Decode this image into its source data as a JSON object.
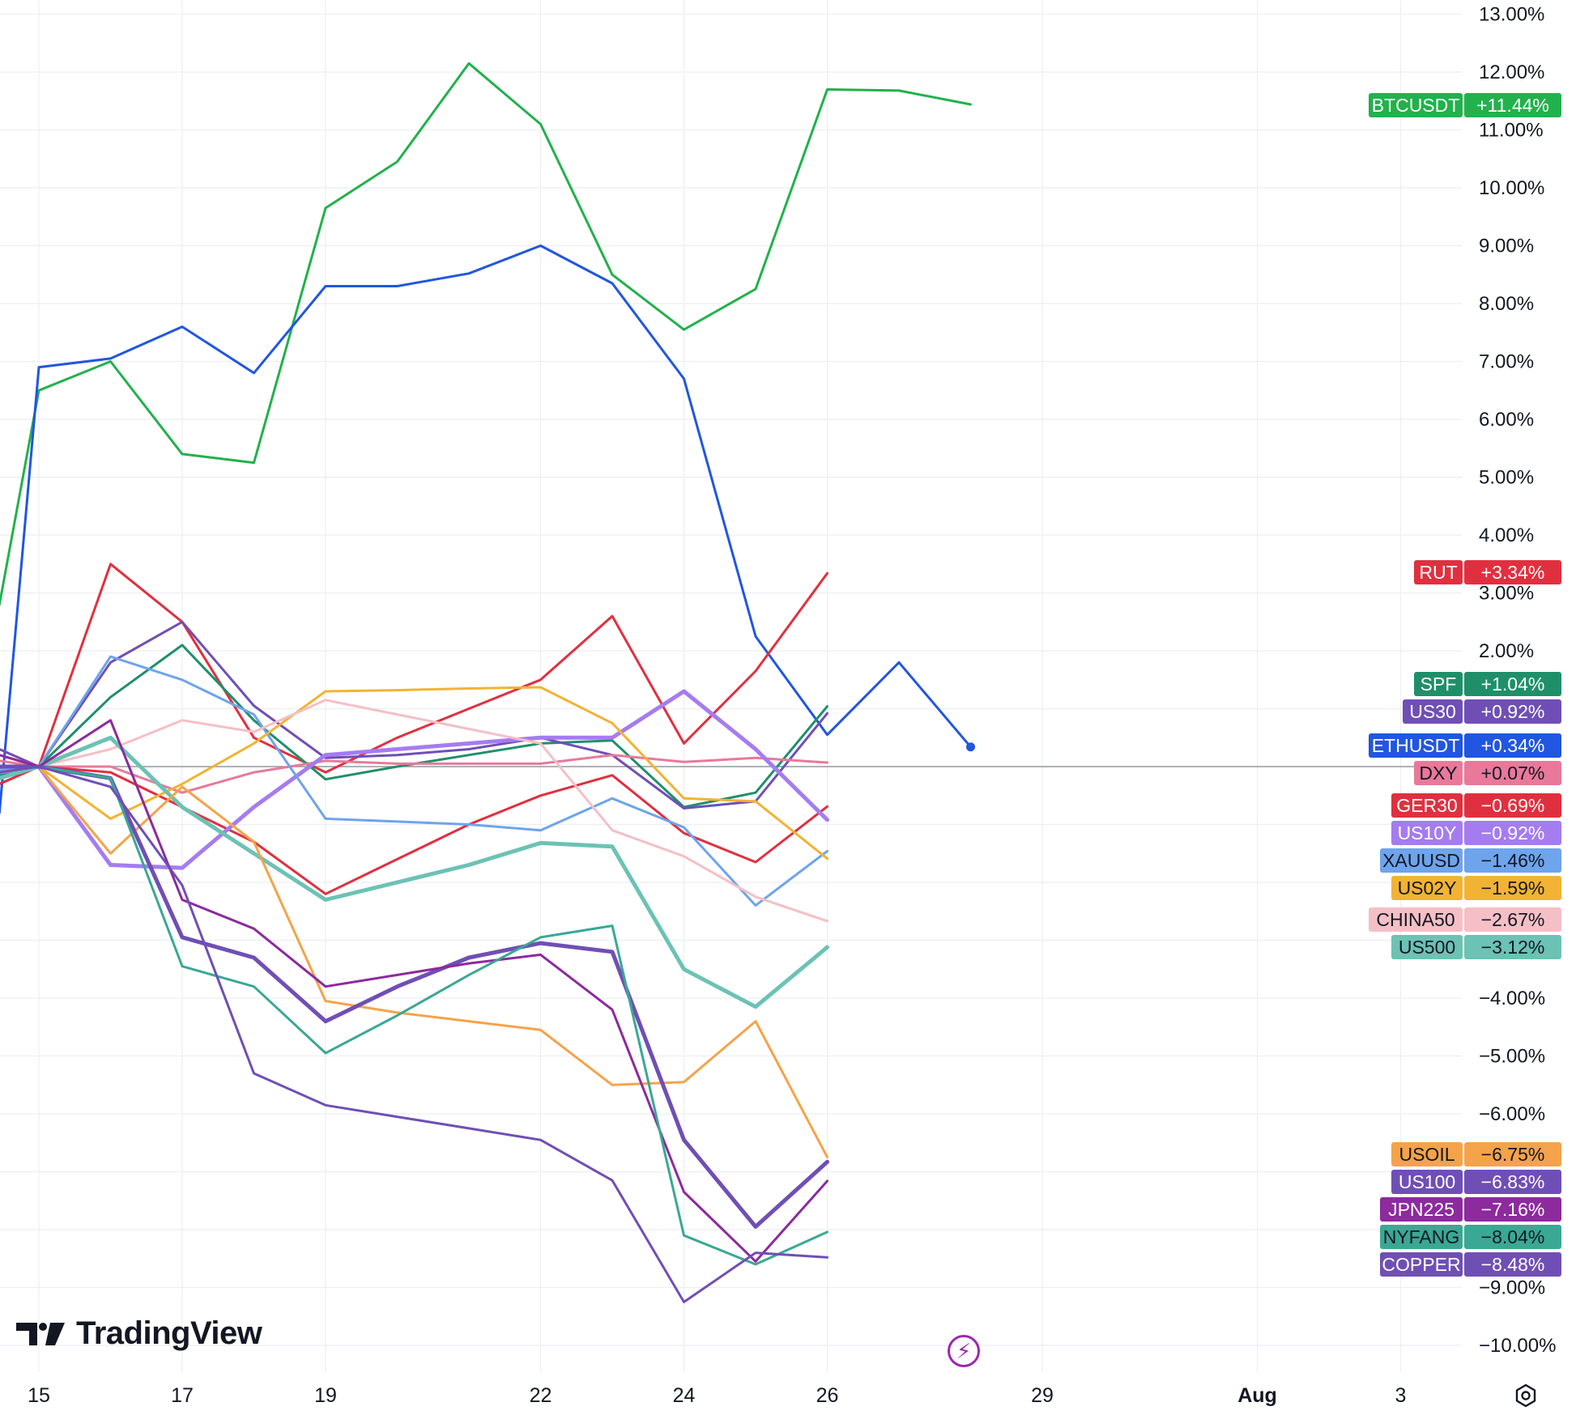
{
  "brand": {
    "name": "TradingView",
    "icon": "tradingview-logo"
  },
  "chart_data": {
    "type": "line",
    "y_unit": "%",
    "ylim": [
      -10.5,
      13.2
    ],
    "y_ticks": [
      "13.00%",
      "12.00%",
      "11.00%",
      "10.00%",
      "9.00%",
      "8.00%",
      "7.00%",
      "6.00%",
      "5.00%",
      "4.00%",
      "3.00%",
      "2.00%",
      "−4.00%",
      "−5.00%",
      "−6.00%",
      "−9.00%",
      "−10.00%"
    ],
    "y_tick_values": [
      13,
      12,
      11,
      10,
      9,
      8,
      7,
      6,
      5,
      4,
      3,
      2,
      -4,
      -5,
      -6,
      -9,
      -10
    ],
    "x_ticks": [
      {
        "label": "15",
        "x": 0
      },
      {
        "label": "17",
        "x": 2
      },
      {
        "label": "19",
        "x": 4
      },
      {
        "label": "22",
        "x": 7
      },
      {
        "label": "24",
        "x": 9
      },
      {
        "label": "26",
        "x": 11
      },
      {
        "label": "29",
        "x": 14
      },
      {
        "label": "Aug",
        "x": 17,
        "bold": true
      },
      {
        "label": "3",
        "x": 19
      }
    ],
    "xlim": [
      -0.55,
      19.0
    ],
    "grid": true,
    "zero_line": true,
    "series": [
      {
        "name": "BTCUSDT",
        "label": "+11.44%",
        "color": "#22b14c",
        "last_dot": false,
        "points": [
          [
            -0.55,
            2.8
          ],
          [
            0,
            6.5
          ],
          [
            1,
            7.0
          ],
          [
            2,
            5.4
          ],
          [
            3,
            5.25
          ],
          [
            4,
            9.65
          ],
          [
            5,
            10.45
          ],
          [
            6,
            12.15
          ],
          [
            7,
            11.1
          ],
          [
            8,
            8.5
          ],
          [
            9,
            7.55
          ],
          [
            10,
            8.25
          ],
          [
            11,
            11.7
          ],
          [
            12,
            11.68
          ],
          [
            13,
            11.44
          ]
        ]
      },
      {
        "name": "ETHUSDT",
        "label": "+0.34%",
        "color": "#2156e0",
        "last_dot": true,
        "points": [
          [
            -0.55,
            -0.8
          ],
          [
            0,
            6.9
          ],
          [
            1,
            7.05
          ],
          [
            2,
            7.6
          ],
          [
            3,
            6.8
          ],
          [
            4,
            8.3
          ],
          [
            5,
            8.3
          ],
          [
            6,
            8.52
          ],
          [
            7,
            9.0
          ],
          [
            8,
            8.35
          ],
          [
            9,
            6.7
          ],
          [
            10,
            2.25
          ],
          [
            11,
            0.55
          ],
          [
            12,
            1.8
          ],
          [
            13,
            0.34
          ]
        ]
      },
      {
        "name": "RUT",
        "label": "+3.34%",
        "color": "#e0303f",
        "last_dot": false,
        "points": [
          [
            -0.55,
            -0.3
          ],
          [
            0,
            0
          ],
          [
            1,
            3.5
          ],
          [
            2,
            2.5
          ],
          [
            3,
            0.5
          ],
          [
            4,
            -0.1
          ],
          [
            5,
            0.5
          ],
          [
            6,
            1.0
          ],
          [
            7,
            1.5
          ],
          [
            8,
            2.6
          ],
          [
            9,
            0.4
          ],
          [
            10,
            1.65
          ],
          [
            11,
            3.34
          ]
        ]
      },
      {
        "name": "SPF",
        "label": "+1.04%",
        "color": "#1f8f6a",
        "last_dot": false,
        "points": [
          [
            -0.55,
            -0.15
          ],
          [
            0,
            0
          ],
          [
            1,
            1.2
          ],
          [
            2,
            2.1
          ],
          [
            3,
            0.8
          ],
          [
            4,
            -0.22
          ],
          [
            5,
            0.0
          ],
          [
            6,
            0.2
          ],
          [
            7,
            0.4
          ],
          [
            8,
            0.45
          ],
          [
            9,
            -0.7
          ],
          [
            10,
            -0.45
          ],
          [
            11,
            1.04
          ]
        ]
      },
      {
        "name": "US30",
        "label": "+0.92%",
        "color": "#6f4fb5",
        "last_dot": false,
        "points": [
          [
            -0.55,
            0.3
          ],
          [
            0,
            0
          ],
          [
            1,
            1.8
          ],
          [
            2,
            2.5
          ],
          [
            3,
            1.05
          ],
          [
            4,
            0.15
          ],
          [
            5,
            0.2
          ],
          [
            6,
            0.3
          ],
          [
            7,
            0.5
          ],
          [
            8,
            0.2
          ],
          [
            9,
            -0.72
          ],
          [
            10,
            -0.6
          ],
          [
            11,
            0.92
          ]
        ]
      },
      {
        "name": "DXY",
        "label": "+0.07%",
        "color": "#e8799a",
        "last_dot": false,
        "points": [
          [
            -0.55,
            0.1
          ],
          [
            0,
            0
          ],
          [
            1,
            0.0
          ],
          [
            2,
            -0.45
          ],
          [
            3,
            -0.1
          ],
          [
            4,
            0.1
          ],
          [
            5,
            0.05
          ],
          [
            6,
            0.05
          ],
          [
            7,
            0.05
          ],
          [
            8,
            0.2
          ],
          [
            9,
            0.08
          ],
          [
            10,
            0.15
          ],
          [
            11,
            0.07
          ]
        ]
      },
      {
        "name": "GER30",
        "label": "−0.69%",
        "color": "#e0303f",
        "last_dot": false,
        "points": [
          [
            -0.55,
            -0.3
          ],
          [
            0,
            0
          ],
          [
            1,
            -0.1
          ],
          [
            2,
            -0.7
          ],
          [
            3,
            -1.3
          ],
          [
            4,
            -2.2
          ],
          [
            5,
            -1.6
          ],
          [
            6,
            -1.0
          ],
          [
            7,
            -0.5
          ],
          [
            8,
            -0.15
          ],
          [
            9,
            -1.15
          ],
          [
            10,
            -1.65
          ],
          [
            11,
            -0.69
          ]
        ]
      },
      {
        "name": "US10Y",
        "label": "−0.92%",
        "color": "#a57cf0",
        "width": 5,
        "last_dot": false,
        "points": [
          [
            -0.55,
            -0.1
          ],
          [
            0,
            0
          ],
          [
            1,
            -1.7
          ],
          [
            2,
            -1.75
          ],
          [
            3,
            -0.7
          ],
          [
            4,
            0.2
          ],
          [
            5,
            0.3
          ],
          [
            6,
            0.4
          ],
          [
            7,
            0.5
          ],
          [
            8,
            0.5
          ],
          [
            9,
            1.3
          ],
          [
            10,
            0.3
          ],
          [
            11,
            -0.92
          ]
        ]
      },
      {
        "name": "XAUUSD",
        "label": "−1.46%",
        "color": "#6ea4ec",
        "last_dot": false,
        "points": [
          [
            -0.55,
            -0.05
          ],
          [
            0,
            0
          ],
          [
            1,
            1.9
          ],
          [
            2,
            1.5
          ],
          [
            3,
            0.9
          ],
          [
            4,
            -0.9
          ],
          [
            5,
            -0.95
          ],
          [
            6,
            -1.0
          ],
          [
            7,
            -1.1
          ],
          [
            8,
            -0.55
          ],
          [
            9,
            -1.05
          ],
          [
            10,
            -2.4
          ],
          [
            11,
            -1.46
          ]
        ]
      },
      {
        "name": "US02Y",
        "label": "−1.59%",
        "color": "#f2b335",
        "last_dot": false,
        "points": [
          [
            -0.55,
            0.2
          ],
          [
            0,
            0
          ],
          [
            1,
            -0.9
          ],
          [
            2,
            -0.3
          ],
          [
            3,
            0.4
          ],
          [
            4,
            1.3
          ],
          [
            5,
            1.32
          ],
          [
            6,
            1.35
          ],
          [
            7,
            1.37
          ],
          [
            8,
            0.75
          ],
          [
            9,
            -0.55
          ],
          [
            10,
            -0.6
          ],
          [
            11,
            -1.59
          ]
        ]
      },
      {
        "name": "CHINA50",
        "label": "−2.67%",
        "color": "#f5bfc6",
        "last_dot": false,
        "points": [
          [
            -0.55,
            -0.1
          ],
          [
            0,
            0
          ],
          [
            1,
            0.3
          ],
          [
            2,
            0.8
          ],
          [
            3,
            0.6
          ],
          [
            4,
            1.15
          ],
          [
            5,
            0.9
          ],
          [
            6,
            0.65
          ],
          [
            7,
            0.4
          ],
          [
            8,
            -1.1
          ],
          [
            9,
            -1.55
          ],
          [
            10,
            -2.25
          ],
          [
            11,
            -2.67
          ]
        ]
      },
      {
        "name": "US500",
        "label": "−3.12%",
        "color": "#6cc2b4",
        "width": 5,
        "last_dot": false,
        "points": [
          [
            -0.55,
            -0.2
          ],
          [
            0,
            0
          ],
          [
            1,
            0.5
          ],
          [
            2,
            -0.7
          ],
          [
            3,
            -1.5
          ],
          [
            4,
            -2.3
          ],
          [
            5,
            -2.0
          ],
          [
            6,
            -1.7
          ],
          [
            7,
            -1.32
          ],
          [
            8,
            -1.38
          ],
          [
            9,
            -3.5
          ],
          [
            10,
            -4.15
          ],
          [
            11,
            -3.12
          ]
        ]
      },
      {
        "name": "USOIL",
        "label": "−6.75%",
        "color": "#f5a34a",
        "last_dot": false,
        "points": [
          [
            -0.55,
            0.0
          ],
          [
            0,
            0
          ],
          [
            1,
            -1.5
          ],
          [
            2,
            -0.35
          ],
          [
            3,
            -1.3
          ],
          [
            4,
            -4.05
          ],
          [
            5,
            -4.25
          ],
          [
            6,
            -4.4
          ],
          [
            7,
            -4.55
          ],
          [
            8,
            -5.5
          ],
          [
            9,
            -5.45
          ],
          [
            10,
            -4.4
          ],
          [
            11,
            -6.75
          ]
        ]
      },
      {
        "name": "US100",
        "label": "−6.83%",
        "color": "#6f4fb5",
        "width": 5,
        "last_dot": false,
        "points": [
          [
            -0.55,
            0.0
          ],
          [
            0,
            0
          ],
          [
            1,
            -0.2
          ],
          [
            2,
            -2.95
          ],
          [
            3,
            -3.3
          ],
          [
            4,
            -4.4
          ],
          [
            5,
            -3.8
          ],
          [
            6,
            -3.3
          ],
          [
            7,
            -3.05
          ],
          [
            8,
            -3.2
          ],
          [
            9,
            -6.45
          ],
          [
            10,
            -7.95
          ],
          [
            11,
            -6.83
          ]
        ]
      },
      {
        "name": "JPN225",
        "label": "−7.16%",
        "color": "#8c2a9e",
        "last_dot": false,
        "points": [
          [
            -0.55,
            0.2
          ],
          [
            0,
            0
          ],
          [
            1,
            0.8
          ],
          [
            2,
            -2.3
          ],
          [
            3,
            -2.8
          ],
          [
            4,
            -3.8
          ],
          [
            5,
            -3.6
          ],
          [
            6,
            -3.4
          ],
          [
            7,
            -3.25
          ],
          [
            8,
            -4.2
          ],
          [
            9,
            -7.35
          ],
          [
            10,
            -8.55
          ],
          [
            11,
            -7.16
          ]
        ]
      },
      {
        "name": "NYFANG",
        "label": "−8.04%",
        "color": "#3aa894",
        "last_dot": false,
        "points": [
          [
            -0.55,
            -0.1
          ],
          [
            0,
            0
          ],
          [
            1,
            -0.2
          ],
          [
            2,
            -3.45
          ],
          [
            3,
            -3.8
          ],
          [
            4,
            -4.95
          ],
          [
            5,
            -4.3
          ],
          [
            6,
            -3.6
          ],
          [
            7,
            -2.95
          ],
          [
            8,
            -2.75
          ],
          [
            9,
            -8.1
          ],
          [
            10,
            -8.6
          ],
          [
            11,
            -8.04
          ]
        ]
      },
      {
        "name": "COPPER",
        "label": "−8.48%",
        "color": "#6f4fb5",
        "last_dot": false,
        "points": [
          [
            -0.55,
            -0.1
          ],
          [
            0,
            0
          ],
          [
            1,
            -0.35
          ],
          [
            2,
            -2.05
          ],
          [
            3,
            -5.3
          ],
          [
            4,
            -5.85
          ],
          [
            5,
            -6.05
          ],
          [
            6,
            -6.25
          ],
          [
            7,
            -6.45
          ],
          [
            8,
            -7.15
          ],
          [
            9,
            -9.25
          ],
          [
            10,
            -8.4
          ],
          [
            11,
            -8.48
          ]
        ]
      }
    ],
    "price_tags": [
      {
        "name": "BTCUSDT",
        "value": "+11.44%",
        "name_color": "#22b14c",
        "value_color": "#22b14c",
        "text_color": "#ffffff"
      },
      {
        "name": "RUT",
        "value": "+3.34%",
        "name_color": "#e0303f",
        "value_color": "#e0303f",
        "text_color": "#ffffff"
      },
      {
        "name": "SPF",
        "value": "+1.04%",
        "name_color": "#1f8f6a",
        "value_color": "#1f8f6a",
        "text_color": "#ffffff"
      },
      {
        "name": "US30",
        "value": "+0.92%",
        "name_color": "#6f4fb5",
        "value_color": "#6f4fb5",
        "text_color": "#ffffff"
      },
      {
        "name": "ETHUSDT",
        "value": "+0.34%",
        "name_color": "#2156e0",
        "value_color": "#2156e0",
        "text_color": "#ffffff"
      },
      {
        "name": "DXY",
        "value": "+0.07%",
        "name_color": "#e8799a",
        "value_color": "#e8799a",
        "text_color": "#131722"
      },
      {
        "name": "GER30",
        "value": "−0.69%",
        "name_color": "#e0303f",
        "value_color": "#e0303f",
        "text_color": "#ffffff"
      },
      {
        "name": "US10Y",
        "value": "−0.92%",
        "name_color": "#a57cf0",
        "value_color": "#a57cf0",
        "text_color": "#ffffff"
      },
      {
        "name": "XAUUSD",
        "value": "−1.46%",
        "name_color": "#6ea4ec",
        "value_color": "#6ea4ec",
        "text_color": "#131722"
      },
      {
        "name": "US02Y",
        "value": "−1.59%",
        "name_color": "#f2b335",
        "value_color": "#f2b335",
        "text_color": "#131722"
      },
      {
        "name": "CHINA50",
        "value": "−2.67%",
        "name_color": "#f5bfc6",
        "value_color": "#f5bfc6",
        "text_color": "#131722"
      },
      {
        "name": "US500",
        "value": "−3.12%",
        "name_color": "#6cc2b4",
        "value_color": "#6cc2b4",
        "text_color": "#131722"
      },
      {
        "name": "USOIL",
        "value": "−6.75%",
        "name_color": "#f5a34a",
        "value_color": "#f5a34a",
        "text_color": "#131722"
      },
      {
        "name": "US100",
        "value": "−6.83%",
        "name_color": "#6f4fb5",
        "value_color": "#6f4fb5",
        "text_color": "#ffffff"
      },
      {
        "name": "JPN225",
        "value": "−7.16%",
        "name_color": "#8c2a9e",
        "value_color": "#8c2a9e",
        "text_color": "#ffffff"
      },
      {
        "name": "NYFANG",
        "value": "−8.04%",
        "name_color": "#3aa894",
        "value_color": "#3aa894",
        "text_color": "#131722"
      },
      {
        "name": "COPPER",
        "value": "−8.48%",
        "name_color": "#6f4fb5",
        "value_color": "#6f4fb5",
        "text_color": "#ffffff"
      }
    ]
  },
  "icons": {
    "replay": "lightning-bolt-icon",
    "settings": "settings-gear-icon"
  }
}
